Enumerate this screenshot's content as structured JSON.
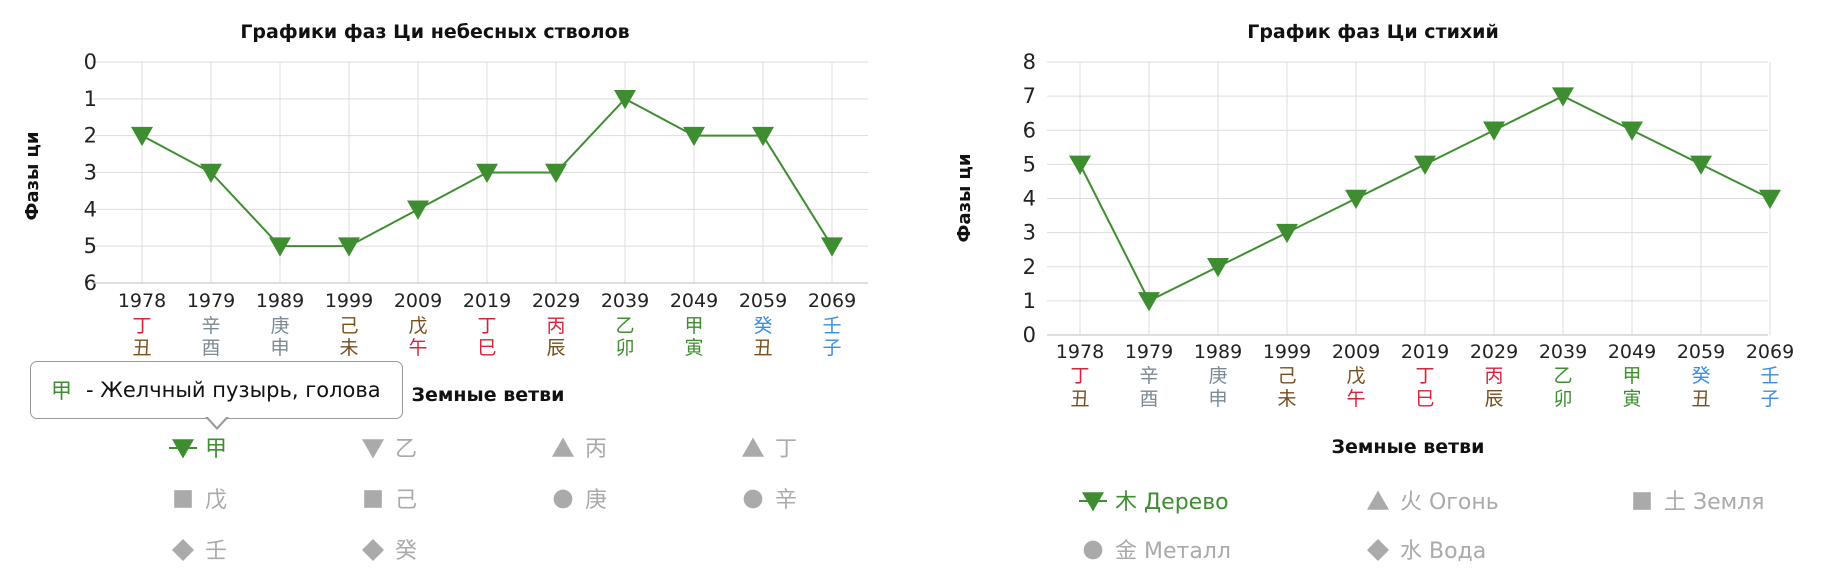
{
  "colors": {
    "series": "#3e8e31",
    "legend_inactive": "#aaaaaa",
    "grid": "#dddddd",
    "axis": "#cccccc",
    "stem_palette": {
      "red": "#d3263b",
      "gray": "#7c8a95",
      "brown": "#7a4d1c",
      "green": "#3e8e31",
      "blue": "#3a8de0"
    }
  },
  "tooltip": {
    "glyph": "甲",
    "text": "- Желчный пузырь, голова"
  },
  "chart_data": [
    {
      "type": "line",
      "title": "Графики фаз Ци небесных стволов",
      "ylabel": "Фазы ци",
      "xlabel": "Земные ветви",
      "y_reversed": true,
      "ylim": [
        0,
        6
      ],
      "yticks": [
        0,
        1,
        2,
        3,
        4,
        5,
        6
      ],
      "grid": true,
      "categories": [
        "1978",
        "1979",
        "1989",
        "1999",
        "2009",
        "2019",
        "2029",
        "2039",
        "2049",
        "2059",
        "2069"
      ],
      "stems": [
        {
          "t": "丁",
          "c": "red"
        },
        {
          "t": "辛",
          "c": "gray"
        },
        {
          "t": "庚",
          "c": "gray"
        },
        {
          "t": "己",
          "c": "brown"
        },
        {
          "t": "戊",
          "c": "brown"
        },
        {
          "t": "丁",
          "c": "red"
        },
        {
          "t": "丙",
          "c": "red"
        },
        {
          "t": "乙",
          "c": "green"
        },
        {
          "t": "甲",
          "c": "green"
        },
        {
          "t": "癸",
          "c": "blue"
        },
        {
          "t": "壬",
          "c": "blue"
        }
      ],
      "branches": [
        {
          "t": "丑",
          "c": "brown"
        },
        {
          "t": "酉",
          "c": "gray"
        },
        {
          "t": "申",
          "c": "gray"
        },
        {
          "t": "未",
          "c": "brown"
        },
        {
          "t": "午",
          "c": "red"
        },
        {
          "t": "巳",
          "c": "red"
        },
        {
          "t": "辰",
          "c": "brown"
        },
        {
          "t": "卯",
          "c": "green"
        },
        {
          "t": "寅",
          "c": "green"
        },
        {
          "t": "丑",
          "c": "brown"
        },
        {
          "t": "子",
          "c": "blue"
        }
      ],
      "series": [
        {
          "name": "甲",
          "values": [
            2,
            3,
            5,
            5,
            4,
            3,
            3,
            1,
            2,
            2,
            5
          ]
        }
      ],
      "legend": [
        {
          "label": "甲",
          "marker": "triangle-down",
          "active": true
        },
        {
          "label": "乙",
          "marker": "triangle-down",
          "active": false
        },
        {
          "label": "丙",
          "marker": "triangle-up",
          "active": false
        },
        {
          "label": "丁",
          "marker": "triangle-up",
          "active": false
        },
        {
          "label": "戊",
          "marker": "square",
          "active": false
        },
        {
          "label": "己",
          "marker": "square",
          "active": false
        },
        {
          "label": "庚",
          "marker": "circle",
          "active": false
        },
        {
          "label": "辛",
          "marker": "circle",
          "active": false
        },
        {
          "label": "壬",
          "marker": "diamond",
          "active": false
        },
        {
          "label": "癸",
          "marker": "diamond",
          "active": false
        }
      ]
    },
    {
      "type": "line",
      "title": "График фаз Ци стихий",
      "ylabel": "Фазы ци",
      "xlabel": "Земные ветви",
      "y_reversed": false,
      "ylim": [
        0,
        8
      ],
      "yticks": [
        0,
        1,
        2,
        3,
        4,
        5,
        6,
        7,
        8
      ],
      "grid": true,
      "categories": [
        "1978",
        "1979",
        "1989",
        "1999",
        "2009",
        "2019",
        "2029",
        "2039",
        "2049",
        "2059",
        "2069"
      ],
      "stems": [
        {
          "t": "丁",
          "c": "red"
        },
        {
          "t": "辛",
          "c": "gray"
        },
        {
          "t": "庚",
          "c": "gray"
        },
        {
          "t": "己",
          "c": "brown"
        },
        {
          "t": "戊",
          "c": "brown"
        },
        {
          "t": "丁",
          "c": "red"
        },
        {
          "t": "丙",
          "c": "red"
        },
        {
          "t": "乙",
          "c": "green"
        },
        {
          "t": "甲",
          "c": "green"
        },
        {
          "t": "癸",
          "c": "blue"
        },
        {
          "t": "壬",
          "c": "blue"
        }
      ],
      "branches": [
        {
          "t": "丑",
          "c": "brown"
        },
        {
          "t": "酉",
          "c": "gray"
        },
        {
          "t": "申",
          "c": "gray"
        },
        {
          "t": "未",
          "c": "brown"
        },
        {
          "t": "午",
          "c": "red"
        },
        {
          "t": "巳",
          "c": "red"
        },
        {
          "t": "辰",
          "c": "brown"
        },
        {
          "t": "卯",
          "c": "green"
        },
        {
          "t": "寅",
          "c": "green"
        },
        {
          "t": "丑",
          "c": "brown"
        },
        {
          "t": "子",
          "c": "blue"
        }
      ],
      "series": [
        {
          "name": "木 Дерево",
          "values": [
            5,
            1,
            2,
            3,
            4,
            5,
            6,
            7,
            6,
            5,
            4
          ]
        }
      ],
      "legend": [
        {
          "label": "木 Дерево",
          "marker": "triangle-down",
          "active": true
        },
        {
          "label": "火 Огонь",
          "marker": "triangle-up",
          "active": false
        },
        {
          "label": "土 Земля",
          "marker": "square",
          "active": false
        },
        {
          "label": "金 Металл",
          "marker": "circle",
          "active": false
        },
        {
          "label": "水 Вода",
          "marker": "diamond",
          "active": false
        }
      ]
    }
  ]
}
